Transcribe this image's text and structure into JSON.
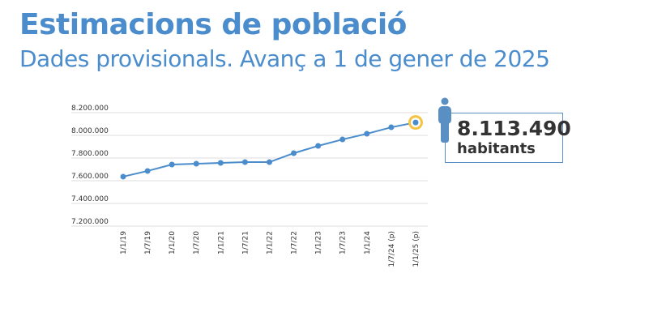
{
  "header": {
    "title": "Estimacions de població",
    "subtitle": "Dades provisionals. Avanç a 1 de gener de 2025"
  },
  "callout": {
    "value": "8.113.490",
    "unit": "habitants",
    "icon": "person-icon"
  },
  "colors": {
    "title": "#4a8ccc",
    "line": "#4a8ccc",
    "highlight": "#f5c242",
    "icon": "#5a8fc4"
  },
  "chart_data": {
    "type": "line",
    "categories": [
      "1/1/19",
      "1/7/19",
      "1/1/20",
      "1/7/20",
      "1/1/21",
      "1/7/21",
      "1/1/22",
      "1/7/22",
      "1/1/23",
      "1/7/23",
      "1/1/24",
      "1/7/24 (p)",
      "1/1/25 (p)"
    ],
    "values": [
      7636000,
      7686000,
      7743000,
      7750000,
      7757000,
      7764000,
      7764000,
      7843000,
      7907000,
      7964000,
      8014000,
      8071000,
      8113490
    ],
    "ylim": [
      7200000,
      8200000
    ],
    "yticks": [
      "7.200.000",
      "7.400.000",
      "7.600.000",
      "7.800.000",
      "8.000.000",
      "8.200.000"
    ],
    "grid": true,
    "highlight_last": true
  }
}
